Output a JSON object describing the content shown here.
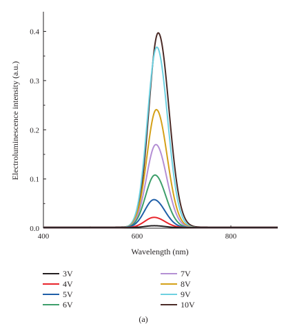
{
  "chart_data": {
    "type": "line",
    "xlabel": "Wavelength (nm)",
    "ylabel": "Electroluminescence intensity (a.u.)",
    "caption": "(a)",
    "xlim": [
      400,
      900
    ],
    "ylim": [
      0,
      0.44
    ],
    "xticks": [
      400,
      600,
      800
    ],
    "xtick_labels": [
      "400",
      "600",
      "800"
    ],
    "yticks": [
      0.0,
      0.1,
      0.2,
      0.3,
      0.4
    ],
    "ytick_labels": [
      "0.0",
      "0.1",
      "0.2",
      "0.3",
      "0.4"
    ],
    "grid": false,
    "legend_position": "bottom",
    "series": [
      {
        "name": "3V",
        "color": "#231f20",
        "peak_x": 636,
        "peak_y": 0.005,
        "baseline": 0.001
      },
      {
        "name": "4V",
        "color": "#e8242a",
        "peak_x": 636,
        "peak_y": 0.022,
        "baseline": 0.001
      },
      {
        "name": "5V",
        "color": "#1f5fa8",
        "peak_x": 636,
        "peak_y": 0.058,
        "baseline": 0.001
      },
      {
        "name": "6V",
        "color": "#3d9e6a",
        "peak_x": 638,
        "peak_y": 0.108,
        "baseline": 0.001
      },
      {
        "name": "7V",
        "color": "#b48fd4",
        "peak_x": 640,
        "peak_y": 0.17,
        "baseline": 0.001
      },
      {
        "name": "8V",
        "color": "#d4a017",
        "peak_x": 641,
        "peak_y": 0.241,
        "baseline": 0.001
      },
      {
        "name": "9V",
        "color": "#6dd0e0",
        "peak_x": 642,
        "peak_y": 0.368,
        "baseline": 0.001
      },
      {
        "name": "10V",
        "color": "#4a2a26",
        "peak_x": 645,
        "peak_y": 0.397,
        "baseline": 0.002
      }
    ]
  }
}
